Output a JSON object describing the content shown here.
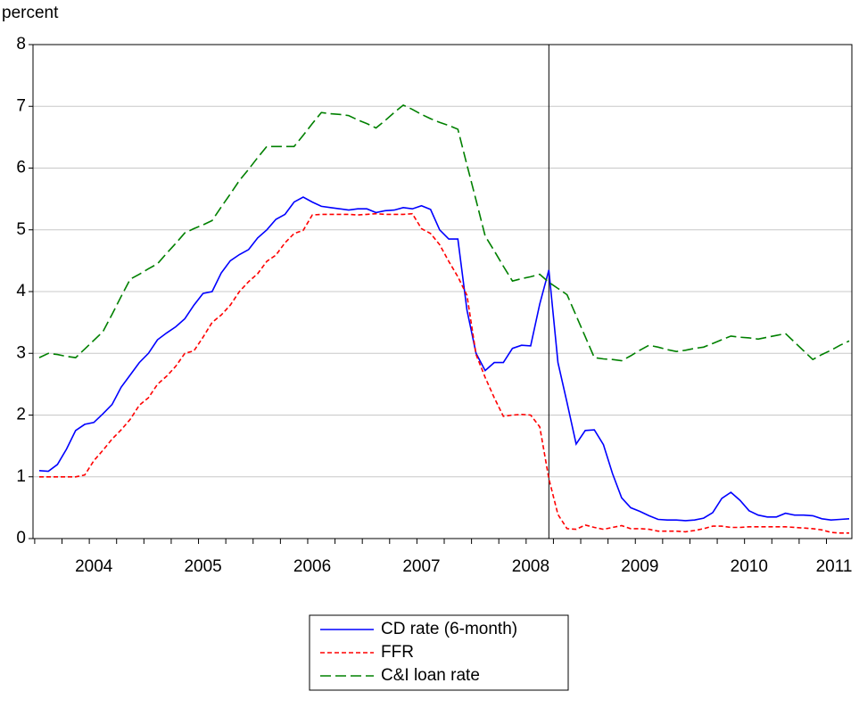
{
  "chart_data": {
    "type": "line",
    "y_label": "percent",
    "categories": [
      null,
      null,
      null,
      null,
      null,
      null,
      "2004",
      null,
      null,
      null,
      null,
      null,
      null,
      null,
      null,
      null,
      null,
      null,
      "2005",
      null,
      null,
      null,
      null,
      null,
      null,
      null,
      null,
      null,
      null,
      null,
      "2006",
      null,
      null,
      null,
      null,
      null,
      null,
      null,
      null,
      null,
      null,
      null,
      "2007",
      null,
      null,
      null,
      null,
      null,
      null,
      null,
      null,
      null,
      null,
      null,
      "2008",
      null,
      null,
      null,
      null,
      null,
      null,
      null,
      null,
      null,
      null,
      null,
      "2009",
      null,
      null,
      null,
      null,
      null,
      null,
      null,
      null,
      null,
      null,
      null,
      "2010",
      null,
      null,
      null,
      null,
      null,
      null,
      null,
      null,
      null,
      "2011",
      null
    ],
    "series": [
      {
        "name": "CD rate (6-month)",
        "color": "#0000ff",
        "dash": "none",
        "values": [
          1.1,
          1.09,
          1.2,
          1.45,
          1.75,
          1.85,
          1.88,
          2.02,
          2.17,
          2.45,
          2.65,
          2.85,
          3.0,
          3.22,
          3.33,
          3.43,
          3.56,
          3.78,
          3.97,
          4.0,
          4.3,
          4.5,
          4.6,
          4.68,
          4.87,
          5.0,
          5.17,
          5.25,
          5.45,
          5.53,
          5.45,
          5.38,
          5.36,
          5.34,
          5.32,
          5.34,
          5.34,
          5.28,
          5.31,
          5.32,
          5.36,
          5.34,
          5.39,
          5.33,
          5.0,
          4.85,
          4.85,
          3.7,
          3.0,
          2.72,
          2.85,
          2.85,
          3.08,
          3.13,
          3.12,
          3.8,
          4.35,
          2.85,
          2.2,
          1.53,
          1.75,
          1.76,
          1.52,
          1.05,
          0.66,
          0.5,
          0.44,
          0.37,
          0.31,
          0.3,
          0.3,
          0.29,
          0.3,
          0.33,
          0.42,
          0.65,
          0.75,
          0.62,
          0.45,
          0.38,
          0.35,
          0.35,
          0.41,
          0.38,
          0.38,
          0.37,
          0.32,
          0.3,
          0.31,
          0.32
        ]
      },
      {
        "name": "FFR",
        "color": "#ff0000",
        "dash": "5,3",
        "values": [
          1.0,
          1.0,
          1.0,
          1.0,
          1.0,
          1.03,
          1.26,
          1.43,
          1.61,
          1.76,
          1.93,
          2.16,
          2.28,
          2.5,
          2.63,
          2.79,
          3.0,
          3.04,
          3.26,
          3.5,
          3.62,
          3.78,
          4.0,
          4.16,
          4.29,
          4.49,
          4.59,
          4.79,
          4.94,
          4.99,
          5.24,
          5.25,
          5.25,
          5.25,
          5.25,
          5.24,
          5.25,
          5.26,
          5.25,
          5.25,
          5.25,
          5.26,
          5.02,
          4.94,
          4.76,
          4.49,
          4.24,
          3.94,
          2.98,
          2.61,
          2.28,
          1.98,
          2.0,
          2.01,
          2.0,
          1.81,
          0.97,
          0.39,
          0.16,
          0.15,
          0.22,
          0.18,
          0.15,
          0.18,
          0.21,
          0.16,
          0.16,
          0.15,
          0.12,
          0.12,
          0.12,
          0.11,
          0.13,
          0.16,
          0.2,
          0.2,
          0.18,
          0.18,
          0.19,
          0.19,
          0.19,
          0.19,
          0.19,
          0.18,
          0.17,
          0.16,
          0.14,
          0.1,
          0.09,
          0.09
        ]
      },
      {
        "name": "C&I loan rate",
        "color": "#008000",
        "dash": "12,5",
        "values": [
          2.93,
          3.0,
          2.98,
          2.95,
          2.93,
          3.07,
          3.21,
          3.35,
          3.63,
          3.92,
          4.2,
          4.28,
          4.37,
          4.45,
          4.62,
          4.78,
          4.95,
          5.02,
          5.08,
          5.15,
          5.37,
          5.58,
          5.8,
          5.98,
          6.17,
          6.35,
          6.35,
          6.35,
          6.35,
          6.53,
          6.72,
          6.9,
          6.88,
          6.87,
          6.85,
          6.78,
          6.72,
          6.65,
          6.77,
          6.9,
          7.02,
          6.95,
          6.87,
          6.8,
          6.74,
          6.69,
          6.63,
          6.05,
          5.48,
          4.9,
          4.66,
          4.41,
          4.17,
          4.21,
          4.24,
          4.28,
          4.15,
          4.05,
          3.95,
          3.61,
          3.27,
          2.93,
          2.91,
          2.9,
          2.88,
          2.96,
          3.05,
          3.13,
          3.1,
          3.06,
          3.03,
          3.05,
          3.08,
          3.1,
          3.16,
          3.22,
          3.28,
          3.26,
          3.25,
          3.23,
          3.26,
          3.29,
          3.32,
          3.18,
          3.04,
          2.9,
          2.98,
          3.05,
          3.13,
          3.2
        ]
      }
    ],
    "vertical_line_at": 56,
    "ylim": [
      0,
      8
    ],
    "yticks": [
      0,
      1,
      2,
      3,
      4,
      5,
      6,
      7,
      8
    ],
    "grid": true,
    "legend": "bottom"
  }
}
